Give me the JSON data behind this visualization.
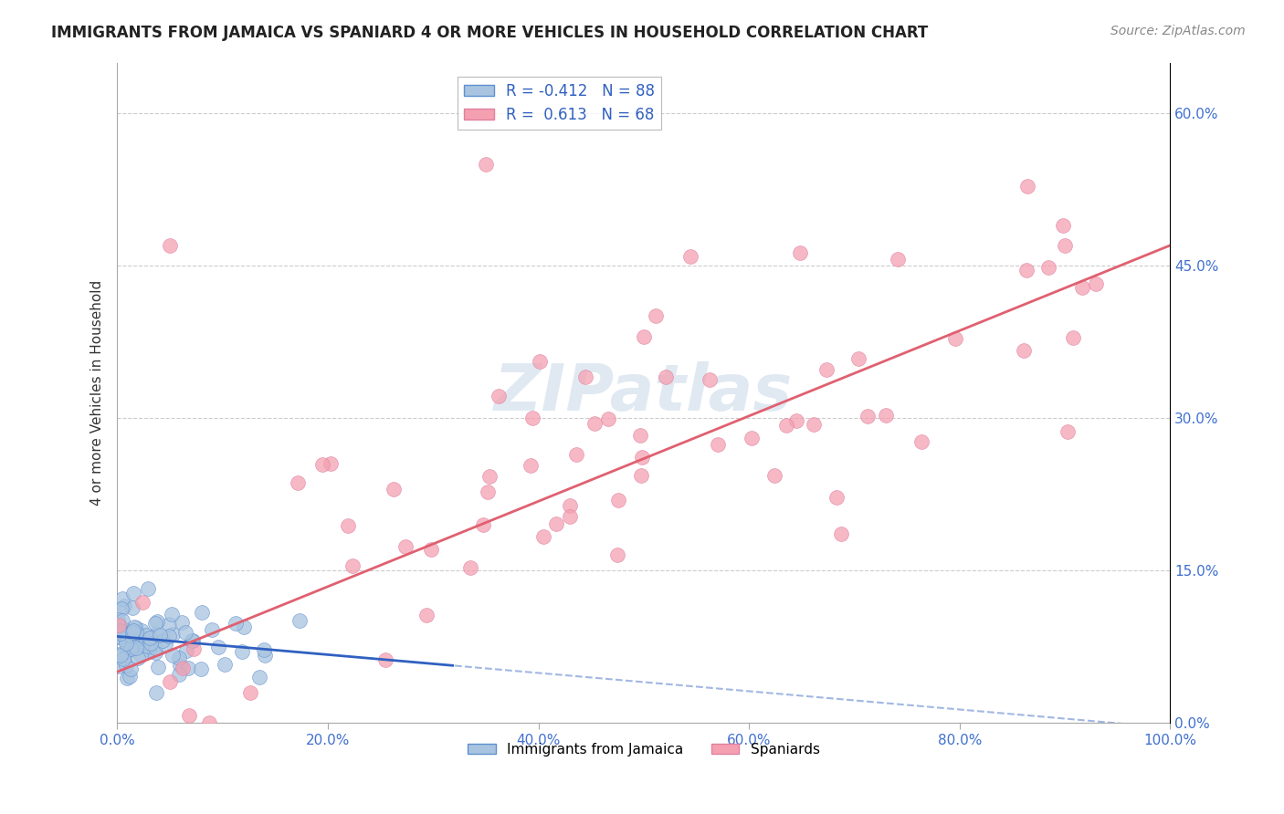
{
  "title": "IMMIGRANTS FROM JAMAICA VS SPANIARD 4 OR MORE VEHICLES IN HOUSEHOLD CORRELATION CHART",
  "source": "Source: ZipAtlas.com",
  "ylabel": "4 or more Vehicles in Household",
  "r_jamaica": -0.412,
  "n_jamaica": 88,
  "r_spaniard": 0.613,
  "n_spaniard": 68,
  "jamaica_color": "#a8c4e0",
  "spaniard_color": "#f4a0b0",
  "jamaica_line_color": "#3060c0",
  "spaniard_line_color": "#e06070",
  "background_color": "#ffffff",
  "grid_color": "#cccccc",
  "watermark": "ZIPatlas",
  "legend_r_color": "#3060c0",
  "xlim": [
    0,
    100
  ],
  "ylim": [
    0,
    65
  ],
  "xticks": [
    0,
    20,
    40,
    60,
    80,
    100
  ],
  "yticks": [
    0,
    15,
    30,
    45,
    60
  ],
  "xticklabels": [
    "0.0%",
    "20.0%",
    "40.0%",
    "60.0%",
    "80.0%",
    "100.0%"
  ],
  "yticklabels": [
    "0.0%",
    "15.0%",
    "30.0%",
    "45.0%",
    "60.0%"
  ],
  "jamaica_seed": 42,
  "spaniard_seed": 7,
  "jamaica_line_slope": -0.09,
  "jamaica_line_intercept": 8.5,
  "jamaica_solid_end": 32.0,
  "spaniard_line_slope": 0.42,
  "spaniard_line_intercept": 5.0
}
